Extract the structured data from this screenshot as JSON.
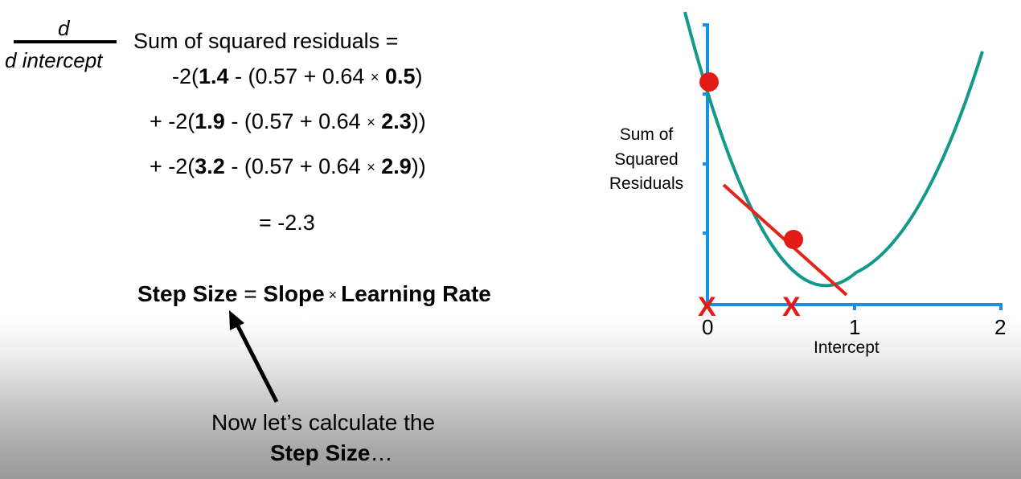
{
  "derivative": {
    "numerator": "d",
    "denominator": "d intercept",
    "title": "Sum of squared residuals ="
  },
  "terms": [
    {
      "prefix": "-2(",
      "observed": "1.4",
      "middle": " - (0.57 + 0.64 ",
      "times": "×",
      "x": "0.5",
      "close": ")"
    },
    {
      "prefix": "+ -2(",
      "observed": "1.9",
      "middle": " - (0.57 + 0.64 ",
      "times": "×",
      "x": "2.3",
      "close": "))"
    },
    {
      "prefix": "+ -2(",
      "observed": "3.2",
      "middle": " - (0.57 + 0.64 ",
      "times": "×",
      "x": "2.9",
      "close": "))"
    }
  ],
  "result": "= -2.3",
  "step_formula": {
    "lhs": "Step Size",
    "eq": " = ",
    "slope": "Slope",
    "times": " × ",
    "rate": "Learning Rate"
  },
  "note": {
    "line1": "Now let’s calculate the",
    "line2_bold": "Step Size",
    "line2_tail": "…"
  },
  "graph": {
    "ylabel": [
      "Sum of",
      "Squared",
      "Residuals"
    ],
    "xlabel": "Intercept",
    "x_ticks": [
      "0",
      "1",
      "2"
    ],
    "x_markers": [
      0,
      0.57
    ],
    "marker_symbol": "X",
    "points_intercept": [
      0,
      0.57
    ],
    "colors": {
      "axis": "#1a8fe6",
      "curve": "#13998a",
      "tangent": "#e0261b",
      "point": "#e31b17",
      "marker": "#e31b17"
    }
  }
}
